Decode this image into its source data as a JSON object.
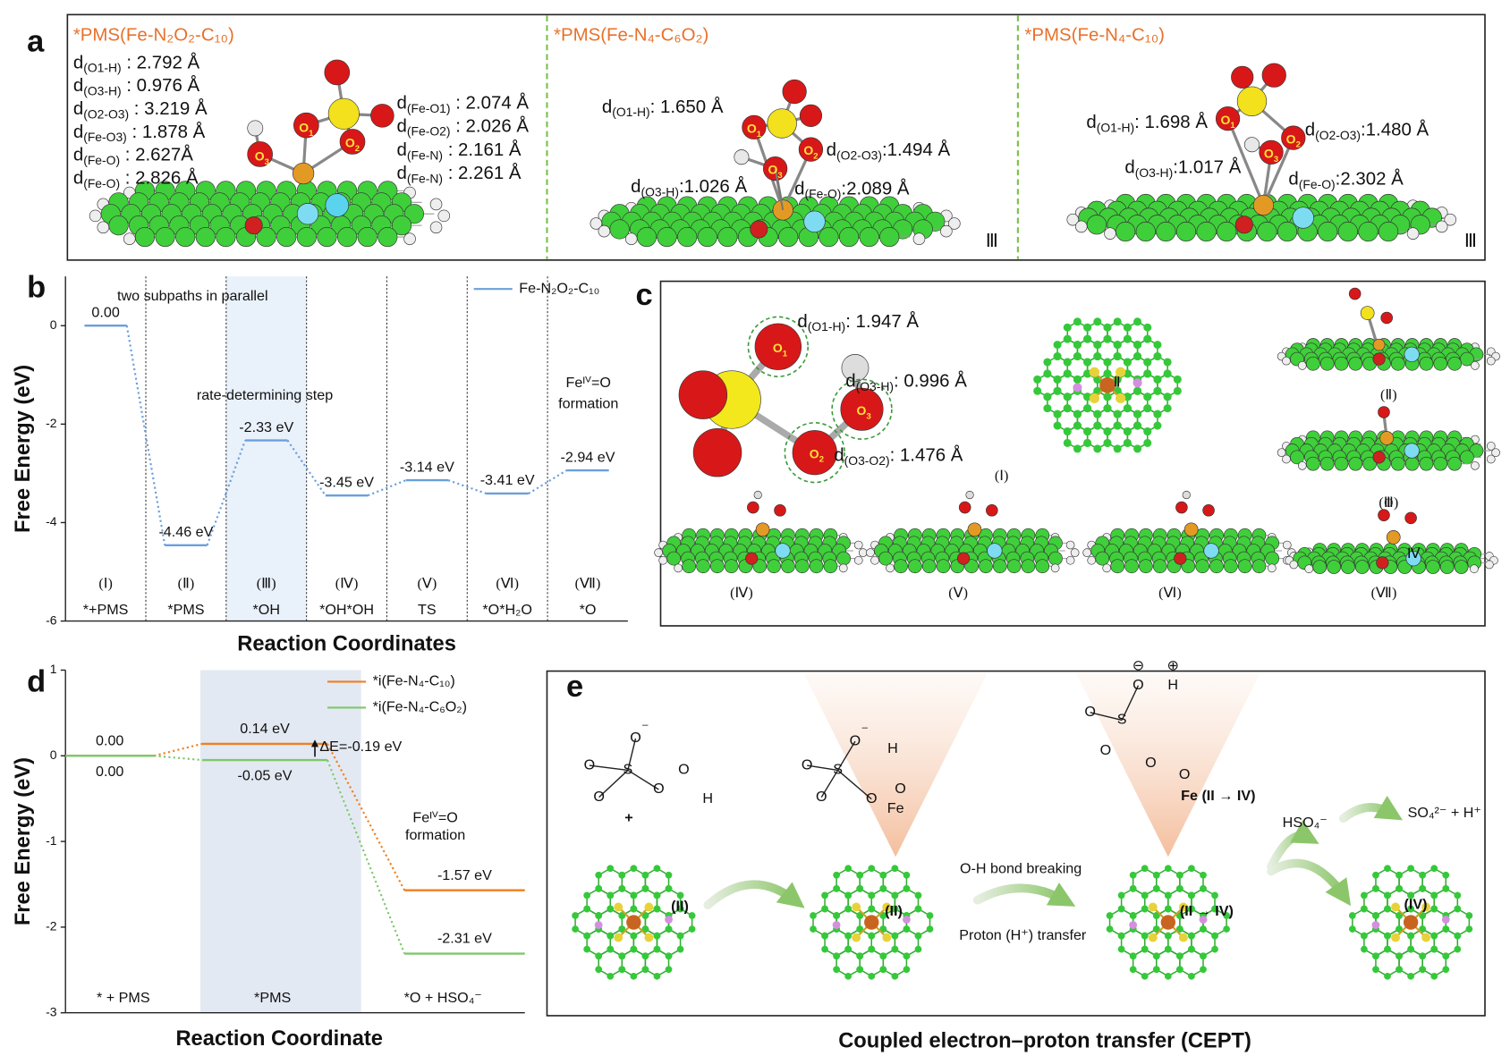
{
  "panel_labels": [
    "a",
    "b",
    "c",
    "d",
    "e"
  ],
  "a": {
    "structures": [
      {
        "title": "*PMS(Fe-N₂O₂-C₁₀)",
        "distances": [
          "d(O1-H) : 2.792 Å",
          "d(O3-H) : 0.976 Å",
          "d(O2-O3) : 3.219 Å",
          "d(Fe-O3) : 1.878 Å",
          "d(Fe-O) : 2.627Å",
          "d(Fe-O) : 2.826 Å",
          "d(Fe-O1) : 2.074 Å",
          "d(Fe-O2) : 2.026 Å",
          "d(Fe-N) : 2.161 Å",
          "d(Fe-N) : 2.261 Å"
        ],
        "atoms": [
          "O1",
          "O2",
          "O3"
        ]
      },
      {
        "title": "*PMS(Fe-N₄-C₆O₂)",
        "distances": [
          "d(O1-H): 1.650 Å",
          "d(O2-O3):1.494 Å",
          "d(O3-H):1.026 Å",
          "d(Fe-O):2.089 Å"
        ],
        "atoms": [
          "O1",
          "O2",
          "O3"
        ],
        "state": "Ⅲ"
      },
      {
        "title": "*PMS(Fe-N₄-C₁₀)",
        "distances": [
          "d(O1-H): 1.698 Å",
          "d(O2-O3):1.480 Å",
          "d(O3-H):1.017 Å",
          "d(Fe-O):2.302 Å"
        ],
        "atoms": [
          "O1",
          "O2",
          "O3"
        ],
        "state": "Ⅲ"
      }
    ]
  },
  "chart_data": [
    {
      "type": "line",
      "categories": [
        "*+PMS",
        "*PMS",
        "*OH",
        "*OH*OH",
        "TS",
        "*O*H₂O",
        "*O"
      ],
      "states": [
        "(Ⅰ)",
        "(Ⅱ)",
        "(Ⅲ)",
        "(Ⅳ)",
        "(Ⅴ)",
        "(Ⅵ)",
        "(Ⅶ)"
      ],
      "series": [
        {
          "name": "Fe-N₂O₂-C₁₀",
          "color": "#6a9fdc",
          "values": [
            0,
            -4.46,
            -2.33,
            -3.45,
            -3.14,
            -3.41,
            -2.94
          ],
          "value_labels": [
            "0.00",
            "-4.46 eV",
            "-2.33 eV",
            "-3.45 eV",
            "-3.14 eV",
            "-3.41 eV",
            "-2.94 eV"
          ]
        }
      ],
      "xlabel": "Reaction Coordinates",
      "ylabel": "Free Energy (eV)",
      "ylim": [
        -6,
        1
      ],
      "yticks": [
        -6,
        -4,
        -2,
        0
      ],
      "highlight_category": 2,
      "highlight_color": "#e9f1fb",
      "annotations": [
        "two subpaths in parallel",
        "rate-determining step",
        "Feᴵⱽ=O",
        "formation"
      ],
      "legend": "upper right"
    },
    {
      "type": "line",
      "categories": [
        "* + PMS",
        "*PMS",
        "*O + HSO₄⁻"
      ],
      "series": [
        {
          "name": "*i(Fe-N₄-C₁₀)",
          "color": "#f07f1e",
          "values": [
            0,
            0.14,
            -1.57
          ],
          "value_labels": [
            "0.00",
            "0.14 eV",
            "-1.57 eV"
          ]
        },
        {
          "name": "*i(Fe-N₄-C₆O₂)",
          "color": "#7ec86a",
          "values": [
            0,
            -0.05,
            -2.31
          ],
          "value_labels": [
            "0.00",
            "-0.05 eV",
            "-2.31 eV"
          ]
        }
      ],
      "xlabel": "Reaction Coordinate",
      "ylabel": "Free Energy (eV)",
      "ylim": [
        -3,
        1
      ],
      "yticks": [
        -3,
        -2,
        -1,
        0,
        1
      ],
      "highlight_category": 1,
      "highlight_color": "#e3e9f3",
      "annotations": [
        "ΔE=-0.19 eV",
        "Feᴵⱽ=O",
        "formation"
      ],
      "legend": "upper right"
    }
  ],
  "c": {
    "distances": [
      "d(O1-H): 1.947 Å",
      "d(O3-H): 0.996 Å",
      "d(O3-O2): 1.476 Å"
    ],
    "atoms": [
      "O1",
      "O2",
      "O3"
    ],
    "states": [
      "(Ⅰ)",
      "Ⅱ",
      "(Ⅱ)",
      "(Ⅲ)",
      "(Ⅳ)",
      "(Ⅴ)",
      "(Ⅵ)",
      "(Ⅶ)",
      "Ⅳ"
    ]
  },
  "e": {
    "plus": "+",
    "steps": [
      "O-H bond breaking",
      "Proton (H⁺) transfer"
    ],
    "products": [
      "HSO₄⁻",
      "SO₄²⁻ + H⁺"
    ],
    "sites": [
      "(II)",
      "(II)",
      "(II → IV)",
      "(IV)"
    ],
    "fe_labels": [
      "Fe",
      "Fe (II → IV)"
    ],
    "molecules": [
      [
        "S",
        "O",
        "⁻",
        "O",
        "O",
        "O",
        "O",
        "H"
      ],
      [
        "S",
        "O",
        "⁻",
        "O",
        "O",
        "O",
        "O",
        "H"
      ],
      [
        "S",
        "O",
        "⊖",
        "O",
        "H",
        "⊕",
        "O",
        "O",
        "O"
      ]
    ],
    "caption": "Coupled electron–proton transfer (CEPT)"
  }
}
